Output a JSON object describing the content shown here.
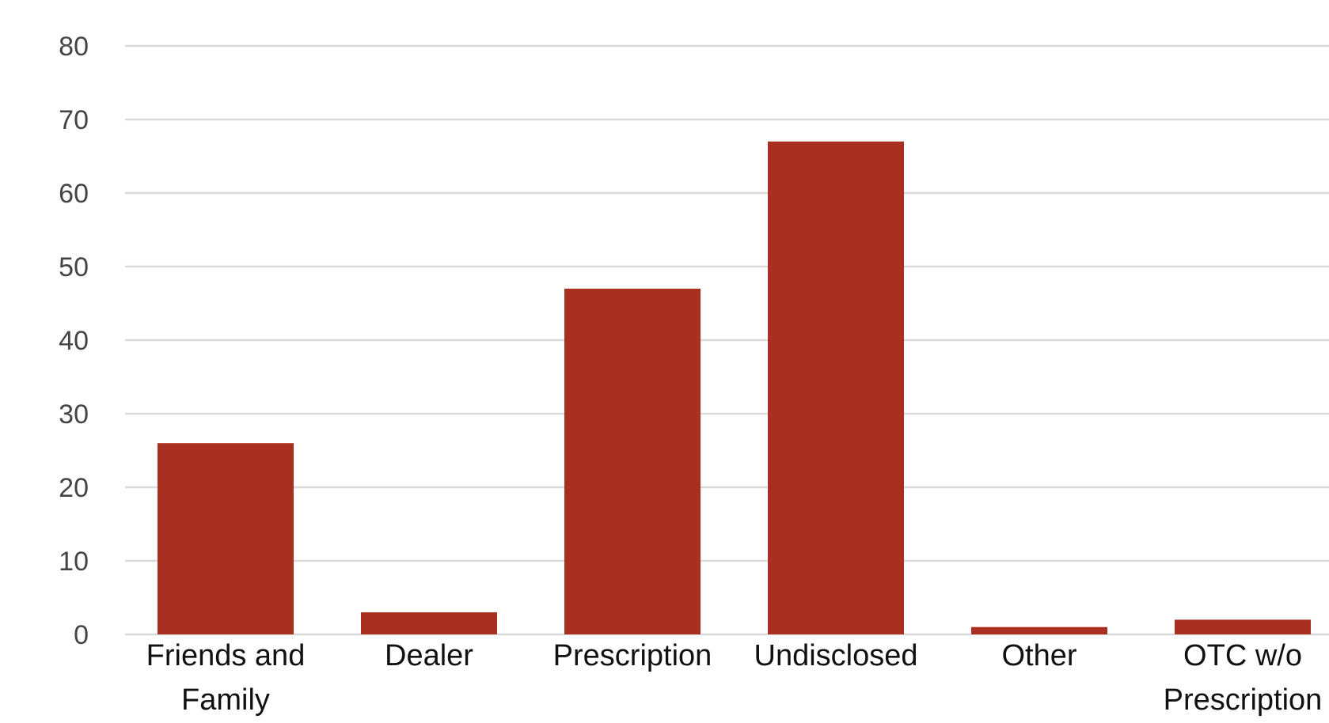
{
  "chart_data": {
    "type": "bar",
    "title": "",
    "xlabel": "",
    "ylabel": "",
    "categories": [
      [
        "Friends and",
        "Family"
      ],
      [
        "Dealer"
      ],
      [
        "Prescription"
      ],
      [
        "Undisclosed"
      ],
      [
        "Other"
      ],
      [
        "OTC w/o",
        "Prescription"
      ]
    ],
    "values": [
      26,
      3,
      47,
      67,
      1,
      2
    ],
    "ylim": [
      0,
      80
    ],
    "yticks": [
      0,
      10,
      20,
      30,
      40,
      50,
      60,
      70,
      80
    ],
    "grid": true,
    "legend": "none",
    "bar_color": "#a93020",
    "grid_color": "#d9d9d9"
  }
}
